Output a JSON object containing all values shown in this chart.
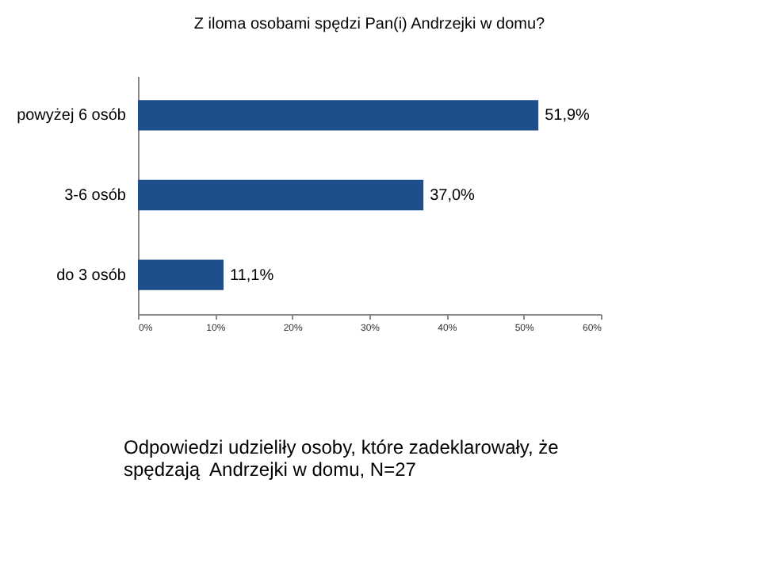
{
  "chart_data": {
    "type": "bar",
    "orientation": "horizontal",
    "title": "Z iloma osobami spędzi Pan(i) Andrzejki w domu?",
    "categories": [
      "powyżej 6 osób",
      "3-6 osób",
      "do 3 osób"
    ],
    "values": [
      51.9,
      37.0,
      11.1
    ],
    "value_labels": [
      "51,9%",
      "37,0%",
      "11,1%"
    ],
    "color": "#1f4e8c",
    "xlim": [
      0,
      60
    ],
    "xticks": [
      {
        "value": 0,
        "label": "0%"
      },
      {
        "value": 10,
        "label": "10%"
      },
      {
        "value": 20,
        "label": "20%"
      },
      {
        "value": 30,
        "label": "30%"
      },
      {
        "value": 40,
        "label": "40%"
      },
      {
        "value": 50,
        "label": "50%"
      },
      {
        "value": 60,
        "label": "60%"
      }
    ],
    "grid": false,
    "annotations": [
      "Odpowiedzi udzieliły osoby, które zadeklarowały, że spędzają  Andrzejki w domu, N=27"
    ]
  }
}
